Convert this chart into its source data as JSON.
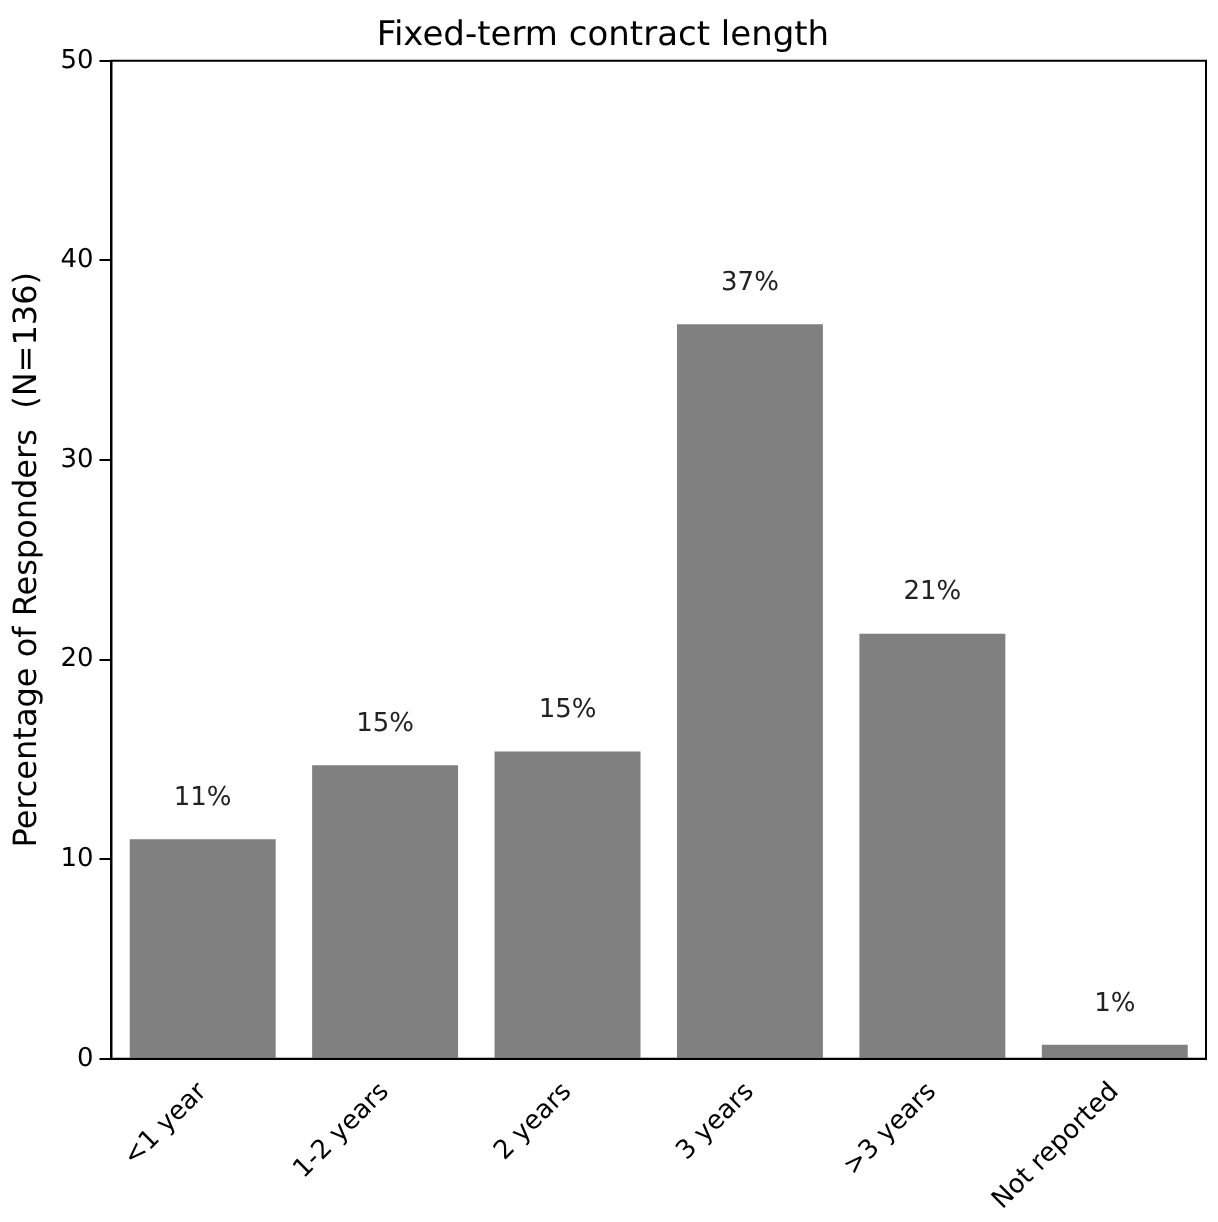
{
  "chart_data": {
    "type": "bar",
    "title": "Fixed-term contract length",
    "ylabel": "Percentage of Responders  (N=136)",
    "categories": [
      "<1 year",
      "1-2 years",
      "2 years",
      "3 years",
      ">3 years",
      "Not reported"
    ],
    "values": [
      11.0,
      14.7,
      15.4,
      36.8,
      21.3,
      0.7
    ],
    "value_labels": [
      "11%",
      "15%",
      "15%",
      "37%",
      "21%",
      "1%"
    ],
    "color": "#808080",
    "ylim": [
      0,
      50
    ],
    "yticks": [
      0,
      10,
      20,
      30,
      40,
      50
    ],
    "grid": false,
    "legend": false
  }
}
